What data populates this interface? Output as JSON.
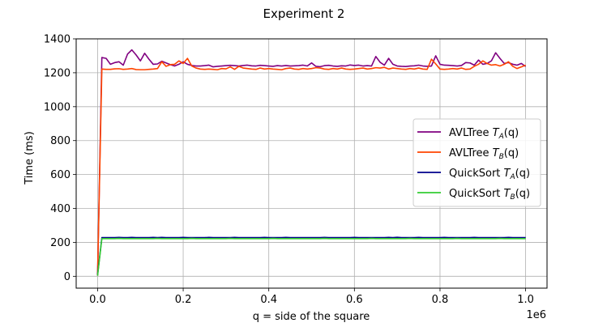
{
  "chart_data": {
    "type": "line",
    "title": "Experiment 2",
    "xlabel": "q = side of the square",
    "ylabel": "Time (ms)",
    "x_offset_label": "1e6",
    "xlim": [
      -50000,
      1050000
    ],
    "ylim": [
      -70,
      1400
    ],
    "x_ticks": [
      0,
      200000,
      400000,
      600000,
      800000,
      1000000
    ],
    "x_tick_labels": [
      "0.0",
      "0.2",
      "0.4",
      "0.6",
      "0.8",
      "1.0"
    ],
    "y_ticks": [
      0,
      200,
      400,
      600,
      800,
      1000,
      1200,
      1400
    ],
    "y_tick_labels": [
      "0",
      "200",
      "400",
      "600",
      "800",
      "1000",
      "1200",
      "1400"
    ],
    "grid": true,
    "legend_position": "center-right",
    "x": [
      0,
      10000,
      20000,
      30000,
      40000,
      50000,
      60000,
      70000,
      80000,
      90000,
      100000,
      110000,
      120000,
      130000,
      140000,
      150000,
      160000,
      170000,
      180000,
      190000,
      200000,
      210000,
      220000,
      230000,
      240000,
      250000,
      260000,
      270000,
      280000,
      290000,
      300000,
      310000,
      320000,
      330000,
      340000,
      350000,
      360000,
      370000,
      380000,
      390000,
      400000,
      410000,
      420000,
      430000,
      440000,
      450000,
      460000,
      470000,
      480000,
      490000,
      500000,
      510000,
      520000,
      530000,
      540000,
      550000,
      560000,
      570000,
      580000,
      590000,
      600000,
      610000,
      620000,
      630000,
      640000,
      650000,
      660000,
      670000,
      680000,
      690000,
      700000,
      710000,
      720000,
      730000,
      740000,
      750000,
      760000,
      770000,
      780000,
      790000,
      800000,
      810000,
      820000,
      830000,
      840000,
      850000,
      860000,
      870000,
      880000,
      890000,
      900000,
      910000,
      920000,
      930000,
      940000,
      950000,
      960000,
      970000,
      980000,
      990000,
      1000000
    ],
    "series": [
      {
        "name": "AVLTree T_A(q)",
        "legend_prefix": "AVLTree ",
        "legend_base": "T",
        "legend_sub": "A",
        "legend_suffix": "(q)",
        "color": "#800080",
        "values": [
          5,
          1290,
          1285,
          1250,
          1260,
          1265,
          1245,
          1310,
          1335,
          1305,
          1270,
          1315,
          1280,
          1250,
          1252,
          1268,
          1258,
          1248,
          1240,
          1250,
          1265,
          1250,
          1243,
          1240,
          1240,
          1242,
          1245,
          1235,
          1238,
          1240,
          1242,
          1244,
          1242,
          1240,
          1243,
          1245,
          1241,
          1240,
          1244,
          1242,
          1240,
          1238,
          1242,
          1240,
          1243,
          1240,
          1241,
          1242,
          1245,
          1240,
          1258,
          1238,
          1236,
          1242,
          1244,
          1240,
          1238,
          1241,
          1240,
          1246,
          1243,
          1245,
          1240,
          1242,
          1240,
          1296,
          1262,
          1245,
          1285,
          1250,
          1240,
          1238,
          1237,
          1240,
          1241,
          1245,
          1240,
          1238,
          1240,
          1300,
          1250,
          1245,
          1244,
          1242,
          1240,
          1243,
          1260,
          1258,
          1245,
          1275,
          1250,
          1255,
          1270,
          1318,
          1285,
          1255,
          1260,
          1250,
          1245,
          1255,
          1237
        ]
      },
      {
        "name": "AVLTree T_B(q)",
        "legend_prefix": "AVLTree ",
        "legend_base": "T",
        "legend_sub": "B",
        "legend_suffix": "(q)",
        "color": "#ff4500",
        "values": [
          5,
          1222,
          1220,
          1220,
          1223,
          1224,
          1220,
          1222,
          1225,
          1219,
          1218,
          1218,
          1220,
          1222,
          1225,
          1265,
          1238,
          1248,
          1250,
          1270,
          1255,
          1285,
          1240,
          1228,
          1222,
          1220,
          1222,
          1220,
          1218,
          1225,
          1223,
          1235,
          1220,
          1238,
          1228,
          1225,
          1222,
          1220,
          1228,
          1222,
          1225,
          1222,
          1220,
          1218,
          1225,
          1228,
          1222,
          1220,
          1225,
          1222,
          1225,
          1230,
          1228,
          1222,
          1220,
          1225,
          1222,
          1228,
          1222,
          1220,
          1222,
          1225,
          1228,
          1222,
          1225,
          1230,
          1228,
          1232,
          1222,
          1228,
          1225,
          1222,
          1220,
          1225,
          1222,
          1228,
          1222,
          1220,
          1280,
          1252,
          1222,
          1220,
          1222,
          1225,
          1222,
          1228,
          1220,
          1222,
          1238,
          1250,
          1270,
          1255,
          1245,
          1248,
          1240,
          1250,
          1265,
          1238,
          1225,
          1235,
          1245
        ]
      },
      {
        "name": "QuickSort T_A(q)",
        "legend_prefix": "QuickSort ",
        "legend_base": "T",
        "legend_sub": "A",
        "legend_suffix": "(q)",
        "color": "#00008b",
        "values": [
          10,
          228,
          228,
          228,
          228,
          229,
          228,
          228,
          229,
          228,
          228,
          228,
          228,
          229,
          228,
          229,
          228,
          228,
          228,
          228,
          229,
          228,
          228,
          228,
          228,
          228,
          229,
          228,
          228,
          228,
          228,
          228,
          229,
          228,
          228,
          228,
          228,
          228,
          228,
          229,
          228,
          228,
          228,
          228,
          229,
          228,
          228,
          228,
          228,
          228,
          228,
          228,
          228,
          229,
          228,
          228,
          228,
          228,
          228,
          228,
          229,
          228,
          228,
          228,
          228,
          228,
          228,
          228,
          229,
          228,
          230,
          228,
          228,
          228,
          228,
          229,
          228,
          228,
          228,
          228,
          228,
          229,
          228,
          228,
          228,
          228,
          228,
          228,
          229,
          228,
          228,
          228,
          228,
          228,
          228,
          228,
          229,
          228,
          228,
          228,
          228
        ]
      },
      {
        "name": "QuickSort T_B(q)",
        "legend_prefix": "QuickSort ",
        "legend_base": "T",
        "legend_sub": "B",
        "legend_suffix": "(q)",
        "color": "#32cd32",
        "values": [
          3,
          222,
          222,
          222,
          222,
          223,
          222,
          222,
          222,
          222,
          222,
          222,
          222,
          222,
          223,
          222,
          222,
          222,
          222,
          222,
          222,
          222,
          223,
          222,
          222,
          222,
          222,
          222,
          222,
          222,
          222,
          223,
          222,
          222,
          222,
          222,
          222,
          222,
          222,
          222,
          222,
          223,
          222,
          222,
          222,
          222,
          222,
          222,
          222,
          222,
          222,
          222,
          222,
          223,
          222,
          222,
          222,
          222,
          222,
          222,
          222,
          222,
          222,
          222,
          223,
          222,
          222,
          222,
          222,
          222,
          222,
          222,
          222,
          223,
          222,
          222,
          222,
          222,
          222,
          222,
          222,
          222,
          222,
          222,
          223,
          222,
          222,
          222,
          222,
          222,
          222,
          222,
          222,
          222,
          223,
          222,
          222,
          222,
          222,
          222,
          222
        ]
      }
    ]
  }
}
